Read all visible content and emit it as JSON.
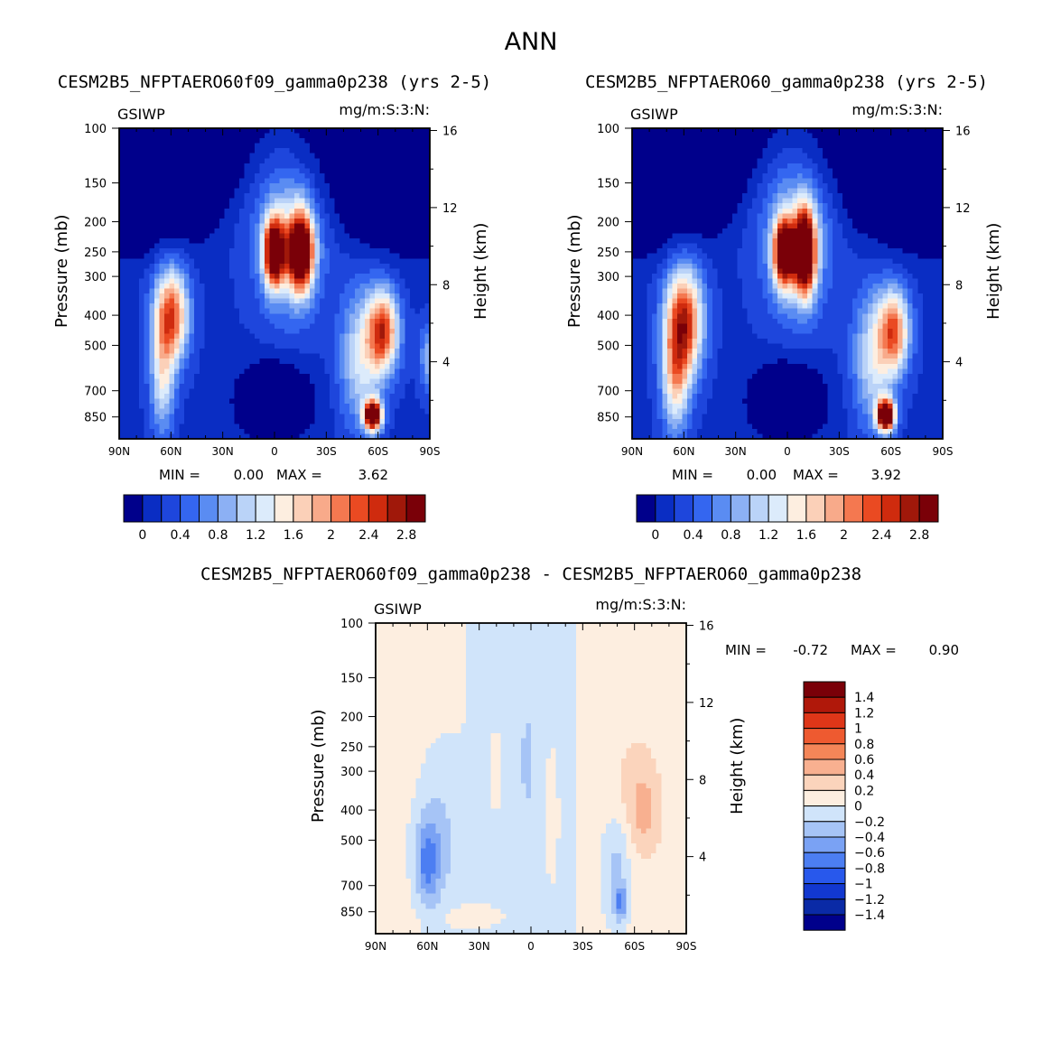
{
  "figure_title": "ANN",
  "colors": {
    "abs_scale": [
      "#00008b",
      "#0a2dc3",
      "#1e46dc",
      "#3466f0",
      "#5a8cf2",
      "#8cb0f4",
      "#bad3f8",
      "#dcebfb",
      "#fdeee0",
      "#fbd0b8",
      "#f8aa8a",
      "#f47850",
      "#ea4a22",
      "#cf2b0e",
      "#a0180a",
      "#7a0008"
    ],
    "diff_scale": [
      "#00008b",
      "#0a2aa6",
      "#1238d0",
      "#2858ec",
      "#4c7ef2",
      "#7aa2f4",
      "#a6c4f6",
      "#d0e4fa",
      "#fdeee0",
      "#fbd4bc",
      "#f8b090",
      "#f48658",
      "#ee5a30",
      "#de3618",
      "#b0180a",
      "#7a0008"
    ]
  },
  "chart_data": [
    {
      "type": "heatmap",
      "title": "CESM2B5_NFPTAERO60f09_gamma0p238 (yrs 2-5)",
      "variable": "GSIWP",
      "units": "mg/m:S:3:N:",
      "ylabel": "Pressure (mb)",
      "y2label": "Height (km)",
      "x_ticks": [
        "90N",
        "60N",
        "30N",
        "0",
        "30S",
        "60S",
        "90S"
      ],
      "y_ticks": [
        100,
        150,
        200,
        250,
        300,
        400,
        500,
        700,
        850
      ],
      "y2_ticks": [
        16,
        12,
        8,
        4
      ],
      "min_label": "MIN =",
      "min": "0.00",
      "max_label": "MAX =",
      "max": "3.62",
      "colorbar_labels": [
        "0",
        "0.4",
        "0.8",
        "1.2",
        "1.6",
        "2",
        "2.4",
        "2.8"
      ],
      "features": [
        {
          "lat": -15,
          "p": 250,
          "value": 3.4
        },
        {
          "lat": 0,
          "p": 250,
          "value": 3.1
        },
        {
          "lat": 60,
          "p": 400,
          "value": 2.4
        },
        {
          "lat": -63,
          "p": 450,
          "value": 2.3
        },
        {
          "lat": -57,
          "p": 830,
          "value": 3.6
        }
      ]
    },
    {
      "type": "heatmap",
      "title": "CESM2B5_NFPTAERO60_gamma0p238 (yrs 2-5)",
      "variable": "GSIWP",
      "units": "mg/m:S:3:N:",
      "ylabel": "Pressure (mb)",
      "y2label": "Height (km)",
      "x_ticks": [
        "90N",
        "60N",
        "30N",
        "0",
        "30S",
        "60S",
        "90S"
      ],
      "y_ticks": [
        100,
        150,
        200,
        250,
        300,
        400,
        500,
        700,
        850
      ],
      "y2_ticks": [
        16,
        12,
        8,
        4
      ],
      "min_label": "MIN =",
      "min": "0.00",
      "max_label": "MAX =",
      "max": "3.92",
      "colorbar_labels": [
        "0",
        "0.4",
        "0.8",
        "1.2",
        "1.6",
        "2",
        "2.4",
        "2.8"
      ],
      "features": [
        {
          "lat": -10,
          "p": 250,
          "value": 3.7
        },
        {
          "lat": 2,
          "p": 250,
          "value": 3.1
        },
        {
          "lat": 60,
          "p": 420,
          "value": 2.6
        },
        {
          "lat": -62,
          "p": 450,
          "value": 2.1
        },
        {
          "lat": -57,
          "p": 830,
          "value": 3.9
        }
      ]
    },
    {
      "type": "heatmap",
      "title": "CESM2B5_NFPTAERO60f09_gamma0p238 - CESM2B5_NFPTAERO60_gamma0p238",
      "variable": "GSIWP",
      "units": "mg/m:S:3:N:",
      "ylabel": "Pressure (mb)",
      "y2label": "Height (km)",
      "x_ticks": [
        "90N",
        "60N",
        "30N",
        "0",
        "30S",
        "60S",
        "90S"
      ],
      "y_ticks": [
        100,
        150,
        200,
        250,
        300,
        400,
        500,
        700,
        850
      ],
      "y2_ticks": [
        16,
        12,
        8,
        4
      ],
      "min_label": "MIN =",
      "min": "-0.72",
      "max_label": "MAX =",
      "max": "0.90",
      "colorbar_labels": [
        "1.4",
        "1.2",
        "1",
        "0.8",
        "0.6",
        "0.4",
        "0.2",
        "0",
        "-0.2",
        "-0.4",
        "-0.6",
        "-0.8",
        "-1",
        "-1.2",
        "-1.4"
      ],
      "features": [
        {
          "lat": 60,
          "p": 600,
          "value": -0.6
        },
        {
          "lat": -52,
          "p": 800,
          "value": -0.72
        },
        {
          "lat": -65,
          "p": 400,
          "value": 0.9
        },
        {
          "lat": 2,
          "p": 250,
          "value": -0.35
        }
      ]
    }
  ]
}
